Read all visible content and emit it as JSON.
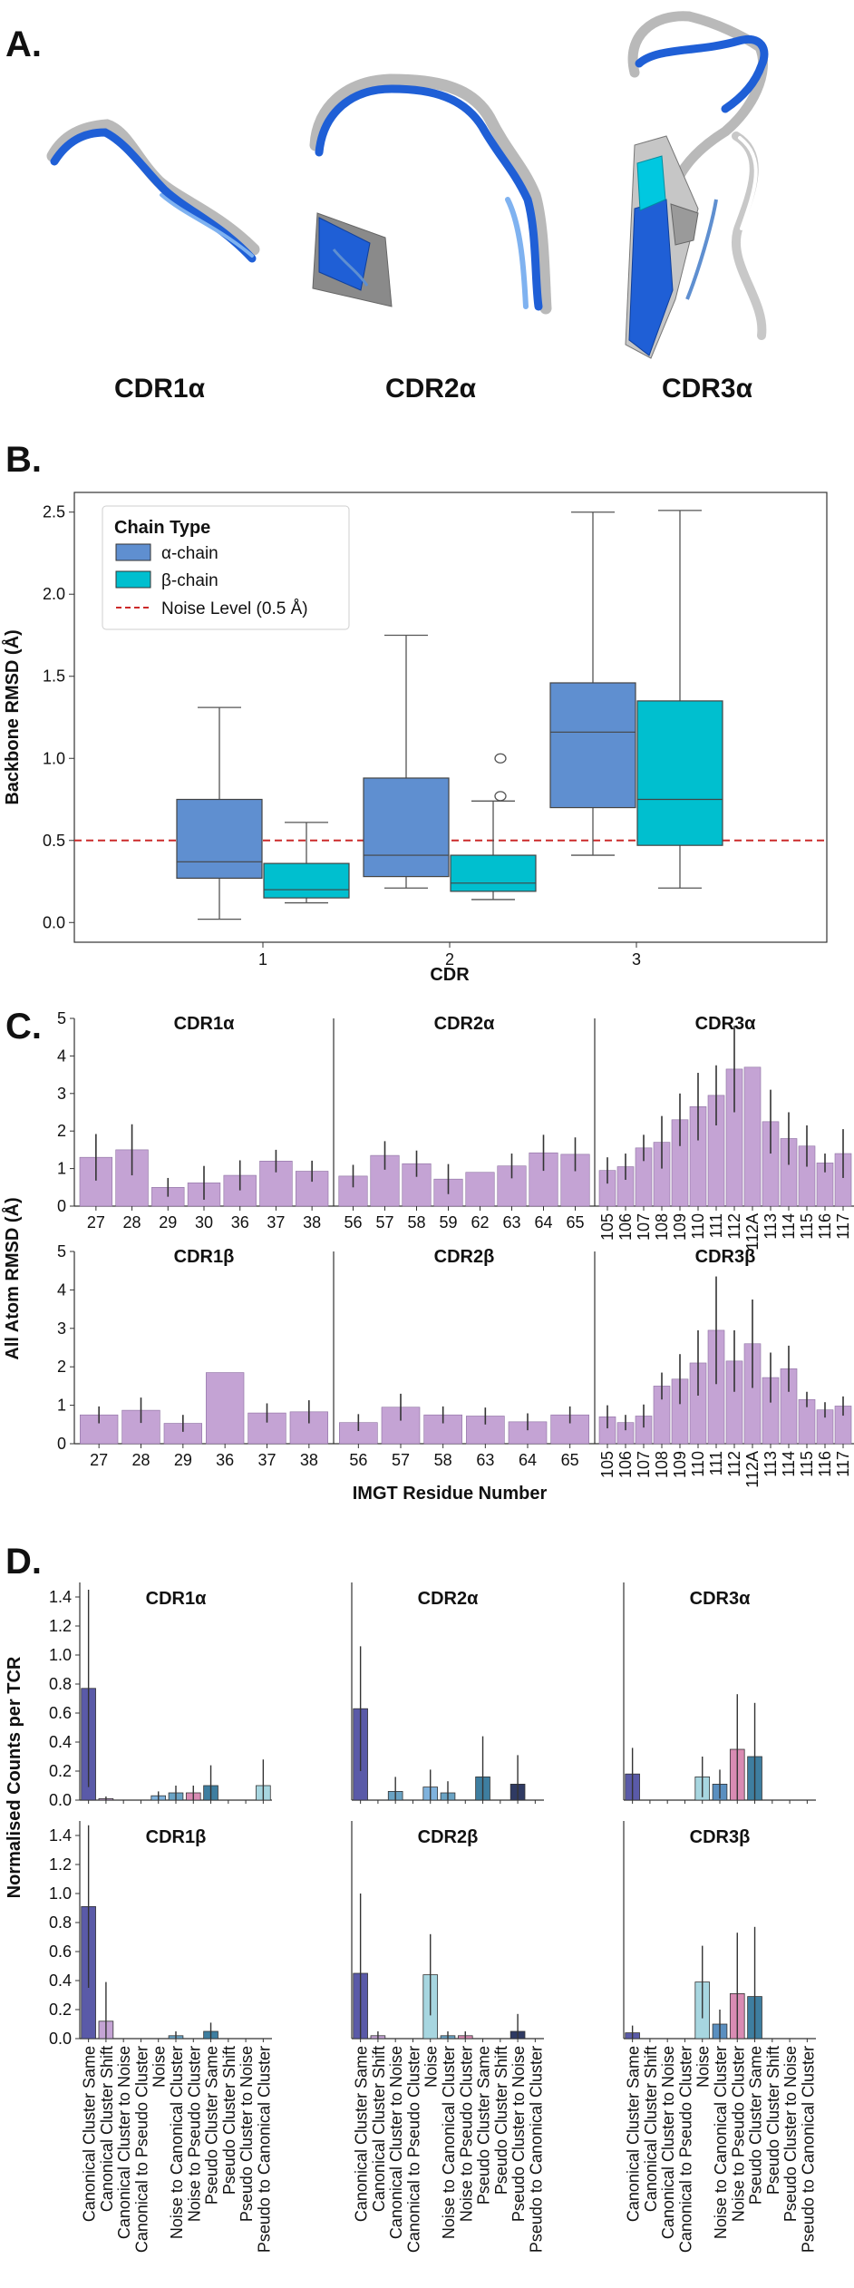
{
  "figure": {
    "panel_labels": [
      "A.",
      "B.",
      "C.",
      "D."
    ],
    "panel_a": {
      "structures": [
        "CDR1α",
        "CDR2α",
        "CDR3α"
      ]
    }
  },
  "colors": {
    "alpha_box": "#5f8fd0",
    "beta_box": "#00bfcf",
    "noise_line": "#cc2a2a",
    "bar_c": "#c4a3d4",
    "ribbon_blue": "#1f5fd6",
    "ribbon_grey": "#b9b9b9",
    "d_palette": [
      "#5a5aa8",
      "#c4a3d4",
      "#8c7bb6",
      "#3d6fa3",
      "#7fb2dd",
      "#6aa3c4",
      "#d98bb3",
      "#3e7ea0",
      "#2f3a63",
      "#5a8fc0",
      "#a7d6e0",
      "#4f86b1"
    ]
  },
  "chart_data": [
    {
      "id": "B",
      "type": "box",
      "xlabel": "CDR",
      "ylabel": "Backbone RMSD (Å)",
      "ylim": [
        -0.12,
        2.62
      ],
      "yticks": [
        "0.0",
        "0.5",
        "1.0",
        "1.5",
        "2.0",
        "2.5"
      ],
      "categories": [
        "1",
        "2",
        "3"
      ],
      "legend": {
        "title": "Chain Type",
        "alpha": "α-chain",
        "beta": "β-chain",
        "noise": "Noise Level (0.5 Å)"
      },
      "noise_level": 0.5,
      "series": [
        {
          "name": "α-chain",
          "boxes": [
            {
              "q1": 0.27,
              "median": 0.37,
              "q3": 0.75,
              "wlo": 0.02,
              "whi": 1.31,
              "fliers": []
            },
            {
              "q1": 0.28,
              "median": 0.41,
              "q3": 0.88,
              "wlo": 0.21,
              "whi": 1.75,
              "fliers": []
            },
            {
              "q1": 0.7,
              "median": 1.16,
              "q3": 1.46,
              "wlo": 0.41,
              "whi": 2.5,
              "fliers": []
            }
          ]
        },
        {
          "name": "β-chain",
          "boxes": [
            {
              "q1": 0.15,
              "median": 0.2,
              "q3": 0.36,
              "wlo": 0.12,
              "whi": 0.61,
              "fliers": []
            },
            {
              "q1": 0.19,
              "median": 0.24,
              "q3": 0.41,
              "wlo": 0.14,
              "whi": 0.74,
              "fliers": [
                0.77,
                1.0
              ]
            },
            {
              "q1": 0.47,
              "median": 0.75,
              "q3": 1.35,
              "wlo": 0.21,
              "whi": 2.51,
              "fliers": []
            }
          ]
        }
      ]
    },
    {
      "id": "C",
      "type": "bar",
      "ylabel": "All Atom RMSD (Å)",
      "xlabel": "IMGT Residue Number",
      "ylim": [
        0,
        5
      ],
      "yticks": [
        "0",
        "1",
        "2",
        "3",
        "4",
        "5"
      ],
      "panels": [
        {
          "title": "CDR1α",
          "categories": [
            "27",
            "28",
            "29",
            "30",
            "36",
            "37",
            "38"
          ],
          "values": [
            1.3,
            1.5,
            0.5,
            0.62,
            0.82,
            1.2,
            0.93
          ],
          "err": [
            0.62,
            0.68,
            0.25,
            0.45,
            0.4,
            0.3,
            0.28
          ]
        },
        {
          "title": "CDR2α",
          "categories": [
            "56",
            "57",
            "58",
            "59",
            "62",
            "63",
            "64",
            "65"
          ],
          "values": [
            0.8,
            1.35,
            1.13,
            0.72,
            0.9,
            1.07,
            1.42,
            1.38
          ],
          "err": [
            0.3,
            0.38,
            0.35,
            0.4,
            0,
            0.33,
            0.48,
            0.45
          ]
        },
        {
          "title": "CDR3α",
          "categories": [
            "105",
            "106",
            "107",
            "108",
            "109",
            "110",
            "111",
            "112",
            "112A",
            "113",
            "114",
            "115",
            "116",
            "117"
          ],
          "values": [
            0.95,
            1.05,
            1.55,
            1.7,
            2.3,
            2.65,
            2.95,
            3.65,
            3.7,
            2.25,
            1.8,
            1.6,
            1.15,
            1.4
          ],
          "err": [
            0.35,
            0.35,
            0.35,
            0.7,
            0.7,
            0.9,
            0.8,
            1.15,
            0,
            0.85,
            0.7,
            0.55,
            0.25,
            0.65
          ]
        },
        {
          "title": "CDR1β",
          "categories": [
            "27",
            "28",
            "29",
            "36",
            "37",
            "38"
          ],
          "values": [
            0.75,
            0.87,
            0.53,
            1.85,
            0.8,
            0.83
          ],
          "err": [
            0.22,
            0.33,
            0.22,
            0,
            0.25,
            0.3
          ]
        },
        {
          "title": "CDR2β",
          "categories": [
            "56",
            "57",
            "58",
            "63",
            "64",
            "65"
          ],
          "values": [
            0.55,
            0.95,
            0.75,
            0.72,
            0.57,
            0.75
          ],
          "err": [
            0.22,
            0.35,
            0.22,
            0.22,
            0.22,
            0.22
          ]
        },
        {
          "title": "CDR3β",
          "categories": [
            "105",
            "106",
            "107",
            "108",
            "109",
            "110",
            "111",
            "112",
            "112A",
            "113",
            "114",
            "115",
            "116",
            "117"
          ],
          "values": [
            0.7,
            0.55,
            0.72,
            1.5,
            1.68,
            2.1,
            2.95,
            2.15,
            2.6,
            1.72,
            1.95,
            1.15,
            0.88,
            0.98
          ],
          "err": [
            0.3,
            0.2,
            0.3,
            0.35,
            0.65,
            0.85,
            1.4,
            0.8,
            1.15,
            0.65,
            0.6,
            0.2,
            0.2,
            0.25
          ]
        }
      ]
    },
    {
      "id": "D",
      "type": "bar",
      "ylabel": "Normalised Counts per TCR",
      "ylim": [
        0,
        1.5
      ],
      "yticks": [
        "0.0",
        "0.2",
        "0.4",
        "0.6",
        "0.8",
        "1.0",
        "1.2",
        "1.4"
      ],
      "categories": [
        "Canonical Cluster Same",
        "Canonical Cluster Shift",
        "Canonical Cluster to Noise",
        "Canonical to Pseudo Cluster",
        "Noise",
        "Noise to Canonical Cluster",
        "Noise to Pseudo Cluster",
        "Pseudo Cluster Same",
        "Pseudo Cluster Shift",
        "Pseudo Cluster to Noise",
        "Pseudo to Canonical Cluster"
      ],
      "panels": [
        {
          "title": "CDR1α",
          "values": [
            0.77,
            0.01,
            0,
            0,
            0.03,
            0.05,
            0.05,
            0.1,
            0,
            0,
            0.1
          ],
          "err": [
            0.68,
            0.015,
            0,
            0,
            0.03,
            0.05,
            0.05,
            0.14,
            0,
            0,
            0.18
          ],
          "colors": [
            0,
            1,
            2,
            3,
            4,
            5,
            6,
            7,
            8,
            9,
            10
          ]
        },
        {
          "title": "CDR2α",
          "values": [
            0.63,
            0,
            0.06,
            0,
            0.09,
            0.05,
            0,
            0.16,
            0,
            0.11,
            0
          ],
          "err": [
            0.43,
            0,
            0.1,
            0,
            0.12,
            0.08,
            0,
            0.28,
            0,
            0.2,
            0
          ],
          "colors": [
            0,
            1,
            5,
            3,
            4,
            5,
            6,
            7,
            8,
            8,
            10
          ]
        },
        {
          "title": "CDR3α",
          "values": [
            0.18,
            0,
            0,
            0,
            0.16,
            0.11,
            0.35,
            0.3,
            0,
            0,
            0
          ],
          "err": [
            0.18,
            0,
            0,
            0,
            0.14,
            0.1,
            0.38,
            0.37,
            0,
            0,
            0
          ],
          "colors": [
            0,
            1,
            2,
            3,
            10,
            9,
            6,
            7,
            8,
            9,
            10
          ]
        },
        {
          "title": "CDR1β",
          "values": [
            0.91,
            0.12,
            0,
            0,
            0,
            0.02,
            0,
            0.05,
            0,
            0,
            0
          ],
          "err": [
            0.56,
            0.27,
            0,
            0,
            0,
            0.03,
            0,
            0.06,
            0,
            0,
            0
          ],
          "colors": [
            0,
            1,
            2,
            3,
            4,
            5,
            6,
            7,
            8,
            9,
            10
          ]
        },
        {
          "title": "CDR2β",
          "values": [
            0.45,
            0.02,
            0,
            0,
            0.44,
            0.02,
            0.02,
            0,
            0,
            0.05,
            0
          ],
          "err": [
            0.55,
            0.03,
            0,
            0,
            0.28,
            0.03,
            0.03,
            0,
            0,
            0.12,
            0
          ],
          "colors": [
            0,
            1,
            2,
            3,
            10,
            5,
            6,
            7,
            8,
            8,
            10
          ]
        },
        {
          "title": "CDR3β",
          "values": [
            0.04,
            0,
            0,
            0,
            0.39,
            0.1,
            0.31,
            0.29,
            0,
            0,
            0
          ],
          "err": [
            0.05,
            0,
            0,
            0,
            0.25,
            0.1,
            0.42,
            0.48,
            0,
            0,
            0
          ],
          "colors": [
            0,
            1,
            2,
            3,
            10,
            9,
            6,
            7,
            8,
            9,
            10
          ]
        }
      ]
    }
  ]
}
